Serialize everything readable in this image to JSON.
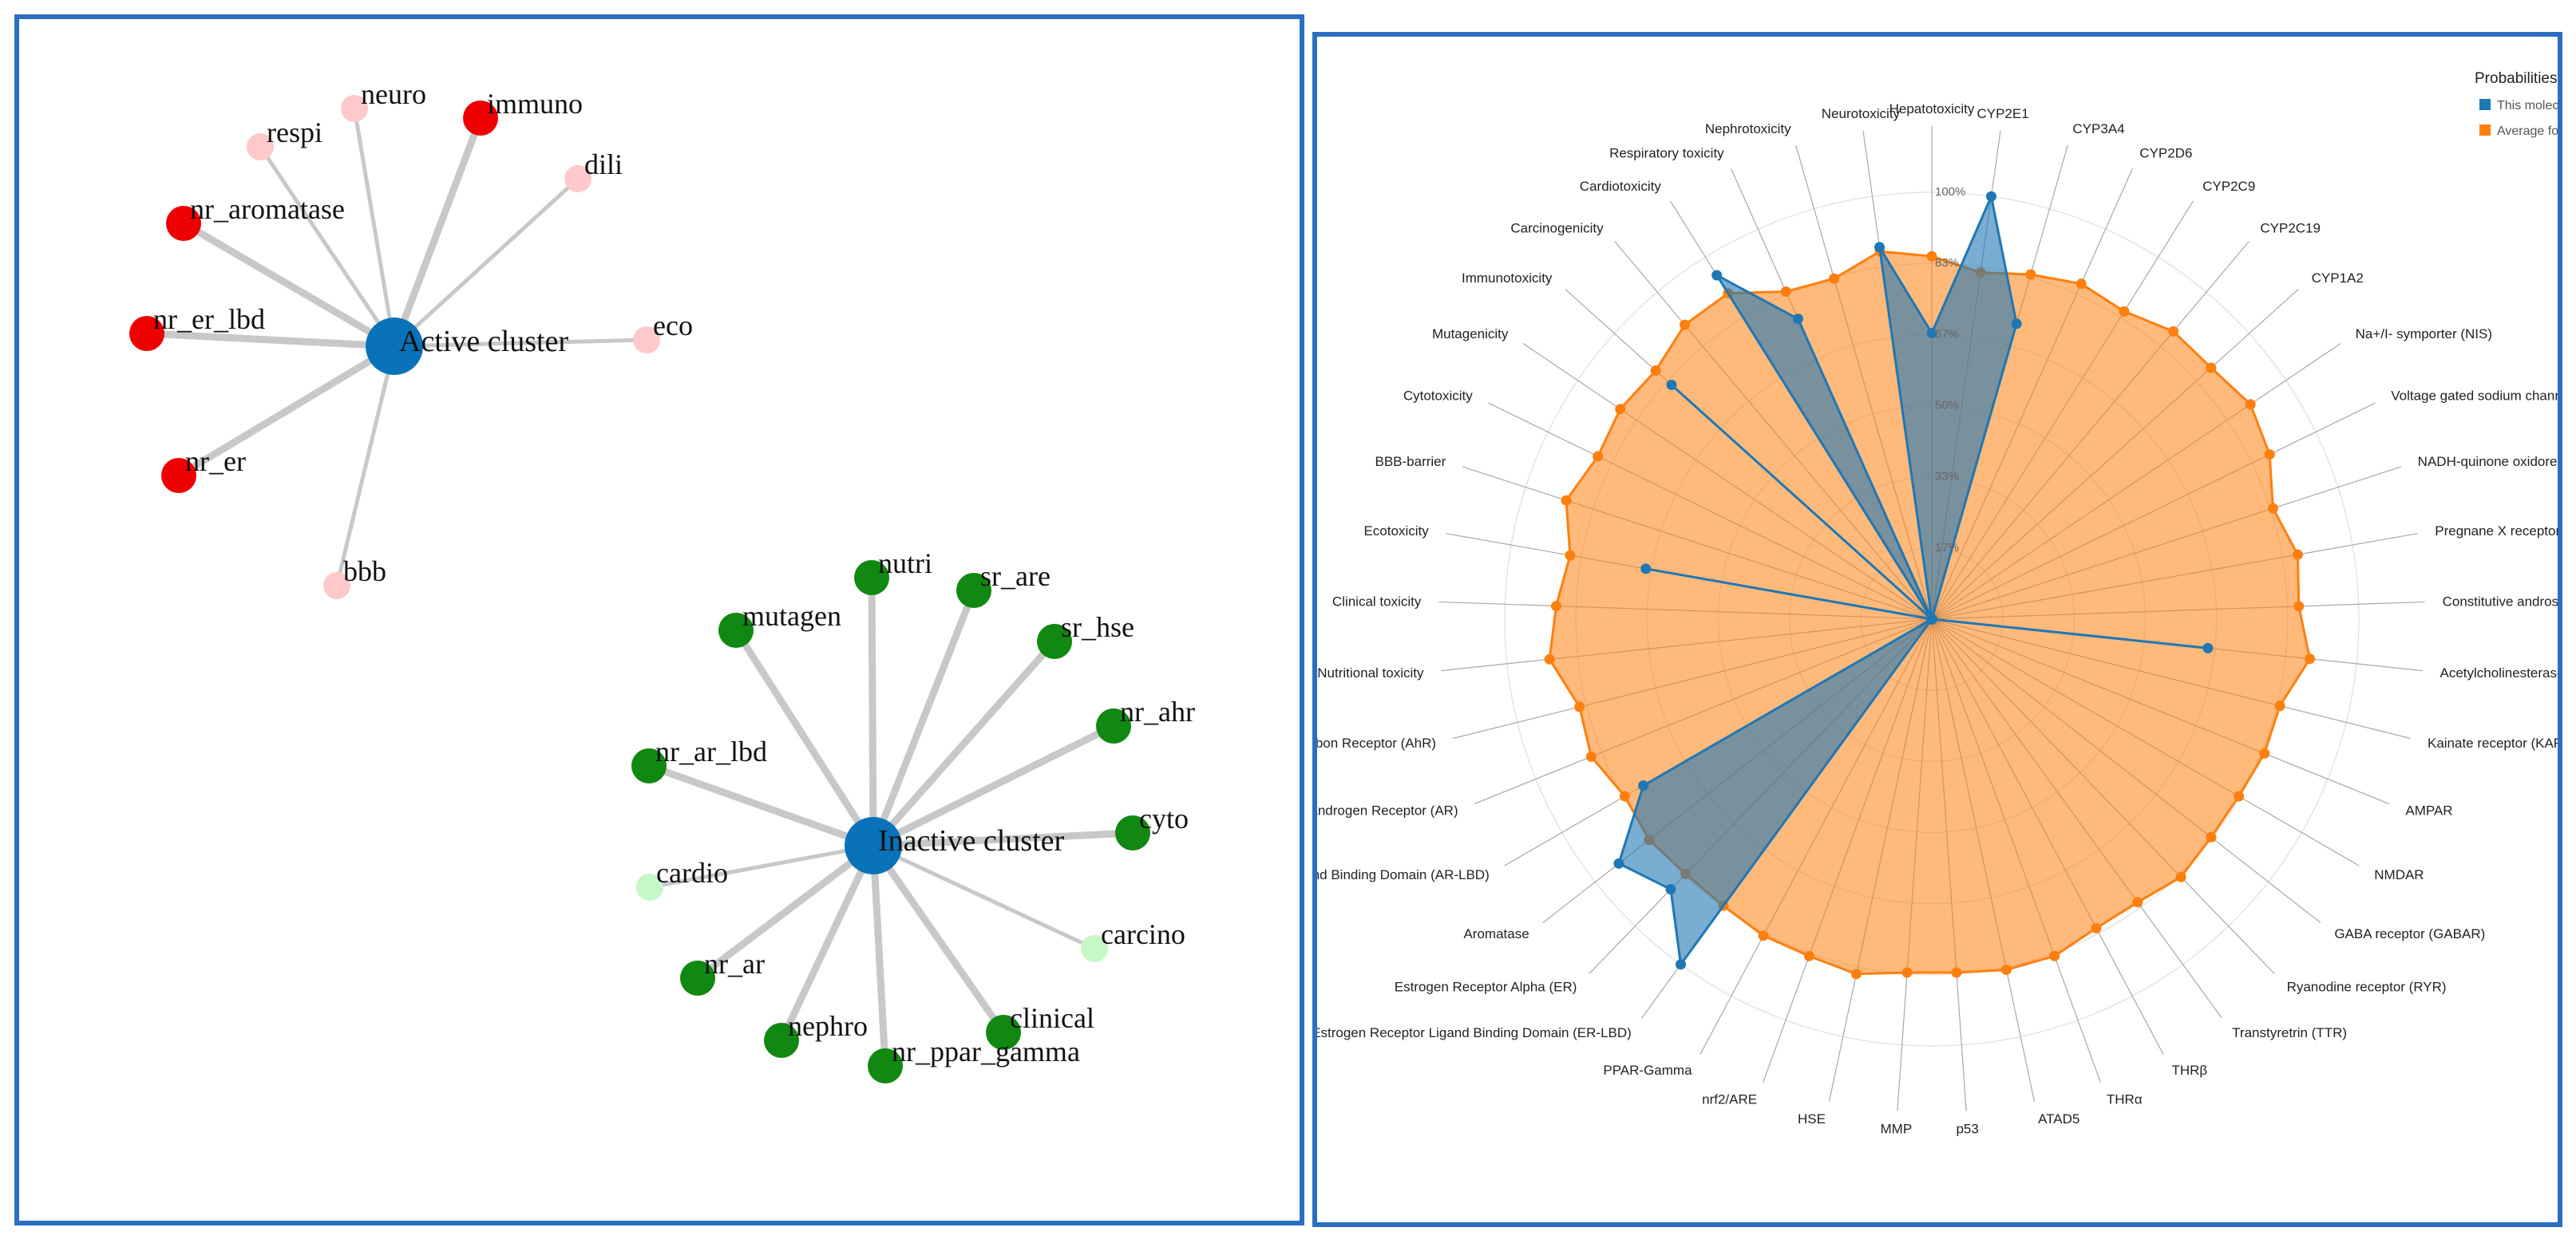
{
  "chart_data": [
    {
      "type": "network",
      "clusters": [
        {
          "name": "Active cluster",
          "color": "#0a72b8",
          "nodes": [
            {
              "label": "neuro",
              "color": "#ffc9c9"
            },
            {
              "label": "immuno",
              "color": "#ee0000"
            },
            {
              "label": "respi",
              "color": "#ffc9c9"
            },
            {
              "label": "dili",
              "color": "#ffc9c9"
            },
            {
              "label": "nr_aromatase",
              "color": "#ee0000"
            },
            {
              "label": "nr_er_lbd",
              "color": "#ee0000"
            },
            {
              "label": "eco",
              "color": "#ffc9c9"
            },
            {
              "label": "nr_er",
              "color": "#ee0000"
            },
            {
              "label": "bbb",
              "color": "#ffc9c9"
            }
          ]
        },
        {
          "name": "Inactive cluster",
          "color": "#0a72b8",
          "nodes": [
            {
              "label": "nutri",
              "color": "#118811"
            },
            {
              "label": "sr_are",
              "color": "#118811"
            },
            {
              "label": "mutagen",
              "color": "#118811"
            },
            {
              "label": "sr_hse",
              "color": "#118811"
            },
            {
              "label": "nr_ahr",
              "color": "#118811"
            },
            {
              "label": "nr_ar_lbd",
              "color": "#118811"
            },
            {
              "label": "cyto",
              "color": "#118811"
            },
            {
              "label": "cardio",
              "color": "#c6f7c6"
            },
            {
              "label": "carcino",
              "color": "#c6f7c6"
            },
            {
              "label": "nr_ar",
              "color": "#118811"
            },
            {
              "label": "clinical",
              "color": "#118811"
            },
            {
              "label": "nephro",
              "color": "#118811"
            },
            {
              "label": "nr_ppar_gamma",
              "color": "#118811"
            }
          ]
        }
      ]
    },
    {
      "type": "radar",
      "axis_ticks": [
        "17%",
        "33%",
        "50%",
        "67%",
        "83%",
        "100%"
      ],
      "legend": {
        "title": "Probabilities",
        "entries": [
          {
            "name": "This molec",
            "color": "#1f77b4"
          },
          {
            "name": "Average fo",
            "color": "#ff7f0e"
          }
        ]
      },
      "axes": [
        "Hepatotoxicity",
        "CYP2E1",
        "CYP3A4",
        "CYP2D6",
        "CYP2C9",
        "CYP2C19",
        "CYP1A2",
        "Na+/I- symporter (NIS)",
        "Voltage gated sodium channel (VGSC)",
        "NADH-quinone oxidoreductase (NADHOX)",
        "Pregnane X receptor (PXR)",
        "Constitutive androstane receptor (CAR)",
        "Acetylcholinesterase (AChE)",
        "Kainate receptor (KAR)",
        "AMPAR",
        "NMDAR",
        "GABA receptor (GABAR)",
        "Ryanodine receptor (RYR)",
        "Transtyretrin (TTR)",
        "THRβ",
        "THRα",
        "ATAD5",
        "p53",
        "MMP",
        "HSE",
        "nrf2/ARE",
        "PPAR-Gamma",
        "Estrogen Receptor Ligand Binding Domain (ER-LBD)",
        "Estrogen Receptor Alpha (ER)",
        "Aromatase",
        "Androgen Receptor Ligand Binding Domain (AR-LBD)",
        "Androgen Receptor (AR)",
        "Aryl hydrocarbon Receptor (AhR)",
        "Nutritional toxicity",
        "Clinical toxicity",
        "Ecotoxicity",
        "BBB-barrier",
        "Cytotoxicity",
        "Mutagenicity",
        "Immunotoxicity",
        "Carcinogenicity",
        "Cardiotoxicity",
        "Respiratory toxicity",
        "Nephrotoxicity",
        "Neurotoxicity"
      ],
      "series": [
        {
          "name": "This molec",
          "color": "#1f77b4",
          "values": [
            0.67,
            1.0,
            0.72,
            0.0,
            0.0,
            0.0,
            0.0,
            0.0,
            0.0,
            0.0,
            0.0,
            0.0,
            0.65,
            0.0,
            0.0,
            0.0,
            0.0,
            0.0,
            0.0,
            0.0,
            0.0,
            0.0,
            0.0,
            0.0,
            0.0,
            0.0,
            0.0,
            1.0,
            0.88,
            0.93,
            0.78,
            0.0,
            0.0,
            0.0,
            0.0,
            0.68,
            0.0,
            0.0,
            0.0,
            0.82,
            0.0,
            0.95,
            0.77,
            0.0,
            0.88
          ]
        },
        {
          "name": "Average fo",
          "color": "#ff7f0e",
          "values": [
            0.85,
            0.82,
            0.84,
            0.86,
            0.85,
            0.88,
            0.88,
            0.9,
            0.88,
            0.84,
            0.87,
            0.86,
            0.89,
            0.84,
            0.84,
            0.83,
            0.83,
            0.84,
            0.82,
            0.82,
            0.84,
            0.84,
            0.83,
            0.83,
            0.85,
            0.84,
            0.84,
            0.83,
            0.83,
            0.84,
            0.83,
            0.86,
            0.85,
            0.9,
            0.88,
            0.86,
            0.9,
            0.87,
            0.88,
            0.87,
            0.9,
            0.9,
            0.84,
            0.83,
            0.87
          ]
        }
      ]
    }
  ]
}
